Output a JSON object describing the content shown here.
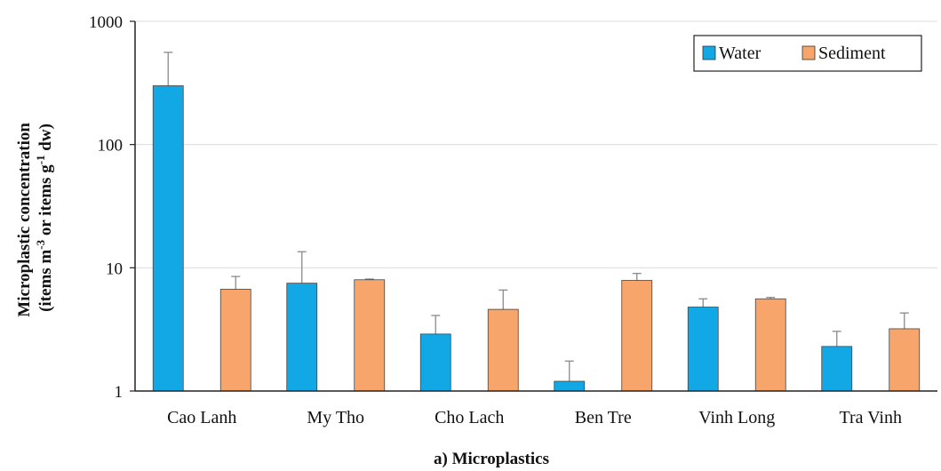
{
  "chart_data": {
    "type": "bar",
    "caption": "a) Microplastics",
    "ylabel_line1": "Microplastic concentration",
    "ylabel_line2_parts": [
      "(items m",
      "-3",
      " or items g",
      "-1",
      " dw)"
    ],
    "yscale": "log",
    "ylim": [
      1,
      1000
    ],
    "yticks": [
      "1",
      "10",
      "100",
      "1000"
    ],
    "categories": [
      "Cao Lanh",
      "My Tho",
      "Cho Lach",
      "Ben Tre",
      "Vinh Long",
      "Tra Vinh"
    ],
    "series": [
      {
        "name": "Water",
        "color": "#12a8e6",
        "values": [
          300,
          7.5,
          2.9,
          1.2,
          4.8,
          2.3
        ],
        "error_upper": [
          560,
          13.5,
          4.1,
          1.75,
          5.6,
          3.05
        ]
      },
      {
        "name": "Sediment",
        "color": "#f7a56a",
        "values": [
          6.7,
          8.0,
          4.6,
          7.9,
          5.6,
          3.2
        ],
        "error_upper": [
          8.5,
          8.1,
          6.6,
          9.0,
          5.75,
          4.3
        ]
      }
    ],
    "grid": "horizontal",
    "legend_position": "top-right"
  }
}
